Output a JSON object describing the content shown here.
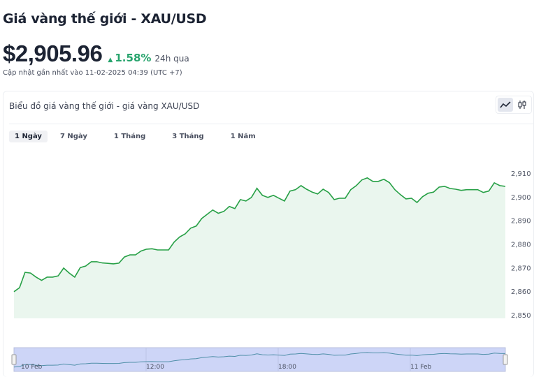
{
  "header": {
    "title": "Giá vàng thế giới - XAU/USD",
    "price": "$2,905.96",
    "change": "1.58%",
    "change_period": "24h qua",
    "updated": "Cập nhật gần nhất vào 11-02-2025 04:39 (UTC +7)"
  },
  "card": {
    "title": "Biểu đồ giá vàng thế giới - giá vàng XAU/USD",
    "chart_types": [
      {
        "icon": "line-chart-icon",
        "active": true
      },
      {
        "icon": "candlestick-icon",
        "active": false
      }
    ],
    "tabs": [
      {
        "label": "1 Ngày",
        "active": true
      },
      {
        "label": "7 Ngày"
      },
      {
        "label": "1 Tháng"
      },
      {
        "label": "3 Tháng"
      },
      {
        "label": "1 Năm"
      }
    ]
  },
  "colors": {
    "line": "#27a046",
    "fill": "#eaf6ee",
    "up": "#27a46d",
    "navigator": "#cdd5f7"
  },
  "chart_data": {
    "type": "area",
    "ylim": [
      2850,
      2910
    ],
    "yticks": [
      "2,850",
      "2,860",
      "2,870",
      "2,880",
      "2,890",
      "2,900",
      "2,910"
    ],
    "navigator_labels": [
      "10 Feb",
      "12:00",
      "18:00",
      "11 Feb"
    ],
    "values": [
      2859.8,
      2861.5,
      2868,
      2867.7,
      2866,
      2864.6,
      2866,
      2866,
      2866.5,
      2869.8,
      2867.7,
      2866,
      2870,
      2870.7,
      2872.5,
      2872.5,
      2872,
      2871.8,
      2871.6,
      2871.9,
      2874.5,
      2875.4,
      2875.4,
      2877,
      2877.8,
      2878,
      2877.5,
      2877.5,
      2877.5,
      2880.8,
      2883,
      2884.3,
      2886.7,
      2887.6,
      2890.8,
      2892.6,
      2894.4,
      2893,
      2893.8,
      2895.9,
      2895,
      2898.8,
      2898.2,
      2899.7,
      2903.6,
      2900.6,
      2899.7,
      2900.6,
      2899.4,
      2898.2,
      2902.4,
      2903,
      2904.7,
      2903.2,
      2902,
      2901.2,
      2903.2,
      2901.8,
      2898.8,
      2899.4,
      2899.4,
      2903,
      2904.7,
      2907.1,
      2908,
      2906.5,
      2906.5,
      2907.4,
      2906,
      2903,
      2900.9,
      2899.1,
      2899.4,
      2897.6,
      2900,
      2901.5,
      2902,
      2904.1,
      2904.4,
      2903.5,
      2903.2,
      2902.7,
      2903,
      2903,
      2903,
      2901.8,
      2902.4,
      2905.9,
      2904.7,
      2904.4
    ]
  }
}
